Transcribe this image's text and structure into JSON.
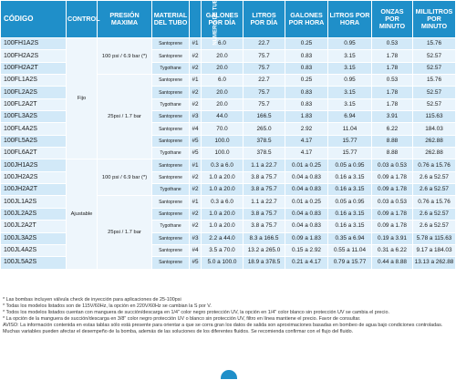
{
  "headers": {
    "code": "CÓDIGO",
    "control": "CONTROL",
    "pressure": "PRESIÓN MAXIMA",
    "tube": "MATERIAL DEL TUBO",
    "tube_no": "NÚMERO DE TUBO",
    "gpd": "GALONES POR DÍA",
    "lpd": "LITROS POR DÍA",
    "gph": "GALONES POR HORA",
    "lph": "LITROS POR HORA",
    "ozpm": "ONZAS POR MINUTO",
    "mlpm": "MILILITROS POR MINUTO"
  },
  "merged": {
    "control_fixed": "Fijo",
    "control_adjustable": "Ajustable",
    "pressure_100_a": "100 psi / 6.9 bar (*)",
    "pressure_25_a": "25psi / 1.7 bar",
    "pressure_100_b": "100 psi / 6.9 bar (*)",
    "pressure_25_b": "25psi / 1.7 bar"
  },
  "rows": [
    {
      "code": "100FH1A2S",
      "tube": "Santoprene",
      "no": "#1",
      "gpd": "6.0",
      "lpd": "22.7",
      "gph": "0.25",
      "lph": "0.95",
      "oz": "0.53",
      "ml": "15.76"
    },
    {
      "code": "100FH2A2S",
      "tube": "Santoprene",
      "no": "#2",
      "gpd": "20.0",
      "lpd": "75.7",
      "gph": "0.83",
      "lph": "3.15",
      "oz": "1.78",
      "ml": "52.57"
    },
    {
      "code": "100FH2A2T",
      "tube": "Tygothane",
      "no": "#2",
      "gpd": "20.0",
      "lpd": "75.7",
      "gph": "0.83",
      "lph": "3.15",
      "oz": "1.78",
      "ml": "52.57"
    },
    {
      "code": "100FL1A2S",
      "tube": "Santoprene",
      "no": "#1",
      "gpd": "6.0",
      "lpd": "22.7",
      "gph": "0.25",
      "lph": "0.95",
      "oz": "0.53",
      "ml": "15.76"
    },
    {
      "code": "100FL2A2S",
      "tube": "Santoprene",
      "no": "#2",
      "gpd": "20.0",
      "lpd": "75.7",
      "gph": "0.83",
      "lph": "3.15",
      "oz": "1.78",
      "ml": "52.57"
    },
    {
      "code": "100FL2A2T",
      "tube": "Tygothane",
      "no": "#2",
      "gpd": "20.0",
      "lpd": "75.7",
      "gph": "0.83",
      "lph": "3.15",
      "oz": "1.78",
      "ml": "52.57"
    },
    {
      "code": "100FL3A2S",
      "tube": "Santoprene",
      "no": "#3",
      "gpd": "44.0",
      "lpd": "166.5",
      "gph": "1.83",
      "lph": "6.94",
      "oz": "3.91",
      "ml": "115.63"
    },
    {
      "code": "100FL4A2S",
      "tube": "Santoprene",
      "no": "#4",
      "gpd": "70.0",
      "lpd": "265.0",
      "gph": "2.92",
      "lph": "11.04",
      "oz": "6.22",
      "ml": "184.03"
    },
    {
      "code": "100FL5A2S",
      "tube": "Santoprene",
      "no": "#5",
      "gpd": "100.0",
      "lpd": "378.5",
      "gph": "4.17",
      "lph": "15.77",
      "oz": "8.88",
      "ml": "262.88"
    },
    {
      "code": "100FL6A2T",
      "tube": "Tygothane",
      "no": "#5",
      "gpd": "100.0",
      "lpd": "378.5",
      "gph": "4.17",
      "lph": "15.77",
      "oz": "8.88",
      "ml": "262.88"
    },
    {
      "code": "100JH1A2S",
      "tube": "Santoprene",
      "no": "#1",
      "gpd": "0.3 a 6.0",
      "lpd": "1.1 a 22.7",
      "gph": "0.01 a 0.25",
      "lph": "0.05 a 0.95",
      "oz": "0.03 a 0.53",
      "ml": "0.76 a 15.76"
    },
    {
      "code": "100JH2A2S",
      "tube": "Santoprene",
      "no": "#2",
      "gpd": "1.0 a 20.0",
      "lpd": "3.8 a 75.7",
      "gph": "0.04 a 0.83",
      "lph": "0.16 a 3.15",
      "oz": "0.09 a 1.78",
      "ml": "2.6 a 52.57"
    },
    {
      "code": "100JH2A2T",
      "tube": "Tygothane",
      "no": "#2",
      "gpd": "1.0 a 20.0",
      "lpd": "3.8 a 75.7",
      "gph": "0.04 a 0.83",
      "lph": "0.16 a 3.15",
      "oz": "0.09 a 1.78",
      "ml": "2.6 a 52.57"
    },
    {
      "code": "100JL1A2S",
      "tube": "Santoprene",
      "no": "#1",
      "gpd": "0.3 a 6.0",
      "lpd": "1.1 a 22.7",
      "gph": "0.01 a 0.25",
      "lph": "0.05 a 0.95",
      "oz": "0.03 a 0.53",
      "ml": "0.76 a 15.76"
    },
    {
      "code": "100JL2A2S",
      "tube": "Santoprene",
      "no": "#2",
      "gpd": "1.0 a 20.0",
      "lpd": "3.8 a 75.7",
      "gph": "0.04 a 0.83",
      "lph": "0.16 a 3.15",
      "oz": "0.09 a 1.78",
      "ml": "2.6 a 52.57"
    },
    {
      "code": "100JL2A2T",
      "tube": "Tygothane",
      "no": "#2",
      "gpd": "1.0 a 20.0",
      "lpd": "3.8 a 75.7",
      "gph": "0.04 a 0.83",
      "lph": "0.16 a 3.15",
      "oz": "0.09 a 1.78",
      "ml": "2.6 a 52.57"
    },
    {
      "code": "100JL3A2S",
      "tube": "Santoprene",
      "no": "#3",
      "gpd": "2.2 a 44.0",
      "lpd": "8.3 a 166.5",
      "gph": "0.09 a 1.83",
      "lph": "0.35 a 6.94",
      "oz": "0.19 a 3.91",
      "ml": "5.78 a 115.63"
    },
    {
      "code": "100JL4A2S",
      "tube": "Santoprene",
      "no": "#4",
      "gpd": "3.5 a 70.0",
      "lpd": "13.2 a 265.0",
      "gph": "0.15 a 2.92",
      "lph": "0.55 a 11.04",
      "oz": "0.31 a 6.22",
      "ml": "9.17 a 184.03"
    },
    {
      "code": "100JL5A2S",
      "tube": "Santoprene",
      "no": "#5",
      "gpd": "5.0 a 100.0",
      "lpd": "18.9 a 378.5",
      "gph": "0.21 a 4.17",
      "lph": "0.79 a 15.77",
      "oz": "0.44 a 8.88",
      "ml": "13.13 a 262.88"
    }
  ],
  "notes": [
    "* Las bombas incluyen válvula check de inyección para aplicaciones de 25-100psi",
    "* Todas los modelos listados son de 115V/60Hz, la opción en 220V/60Hz se cambian la S por V.",
    "* Todos los modelos listados cuentan con manguera de succión/descarga en 1/4\" color negro protección UV, la opción en 1/4\" color blanco sin protección UV se cambia el precio.",
    "* La opción de la manguera de succión/descarga en 3/8\" color negro protección UV o blanco sin protección UV, filtro en línea mantiene el precio. Favor de consultar."
  ],
  "warning": "AVISO: La información contenida en estas tablas sólo está presente para orientar a que se corra gran los datos de salida son aproximaciones basadas en bombeo de agua bajo condiciones controladas. Muchas variables pueden afectar el desempeño de la bomba, además de las soluciones de los diferentes fluidos. Se recomienda confirmar con el flujo del fluido."
}
